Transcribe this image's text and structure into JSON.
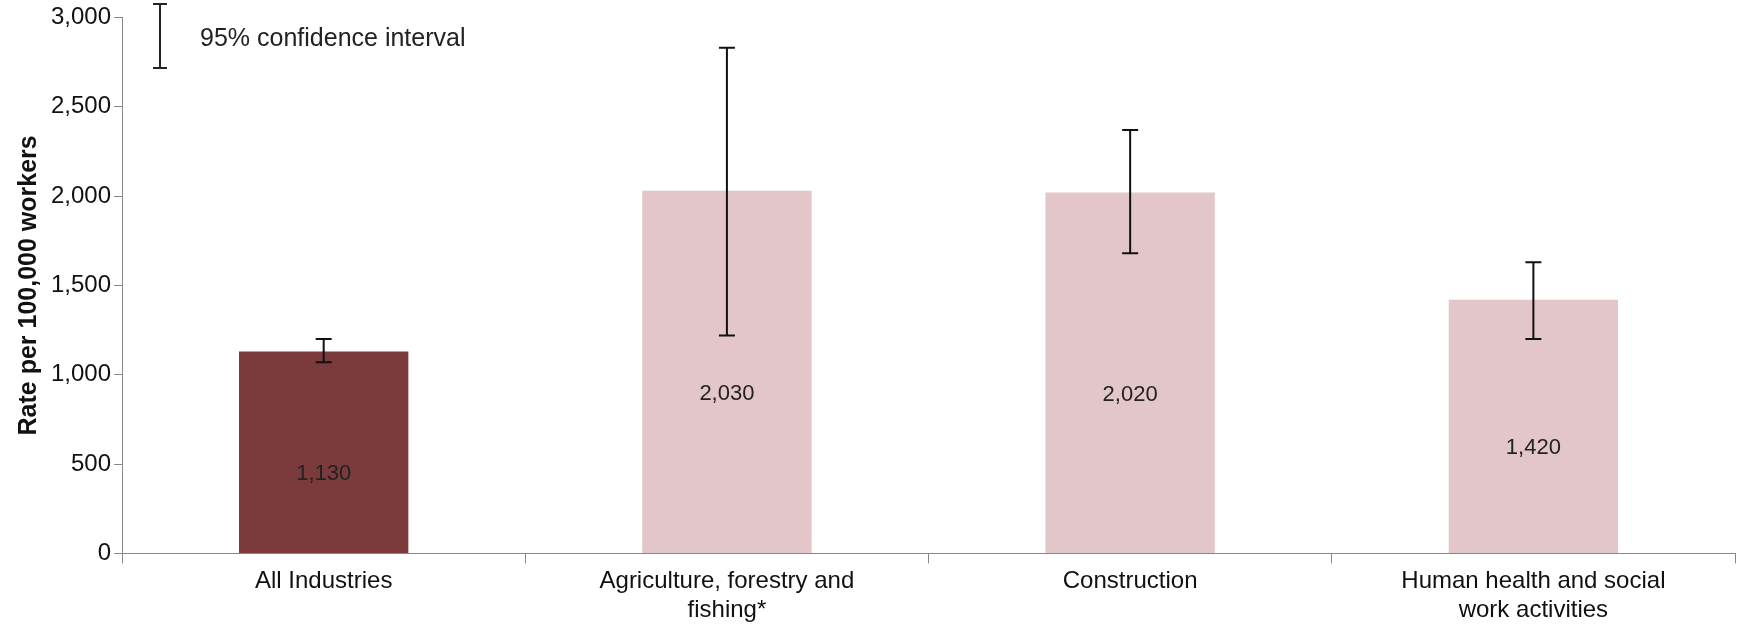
{
  "chart_data": {
    "type": "bar",
    "ylabel": "Rate per 100,000 workers",
    "categories": [
      "All Industries",
      "Agriculture, forestry and fishing*",
      "Construction",
      "Human health and social work activities"
    ],
    "values": [
      1130,
      2030,
      2020,
      1420
    ],
    "colors": [
      "#7b3b3d",
      "#e2c6c9",
      "#e2c6c9",
      "#e2c6c9"
    ],
    "errors": [
      [
        1070,
        1200
      ],
      [
        1220,
        2830
      ],
      [
        1680,
        2370
      ],
      [
        1200,
        1630
      ]
    ],
    "value_labels": [
      "1,130",
      "2,030",
      "2,020",
      "1,420"
    ],
    "ylim": [
      0,
      3000
    ],
    "yticks": [
      {
        "value": 0,
        "label": "0"
      },
      {
        "value": 500,
        "label": "500"
      },
      {
        "value": 1000,
        "label": "1,000"
      },
      {
        "value": 1500,
        "label": "1,500"
      },
      {
        "value": 2000,
        "label": "2,000"
      },
      {
        "value": 2500,
        "label": "2,500"
      },
      {
        "value": 3000,
        "label": "3,000"
      }
    ],
    "grid": false,
    "legend": false,
    "annotations": [
      "95% confidence interval"
    ]
  }
}
